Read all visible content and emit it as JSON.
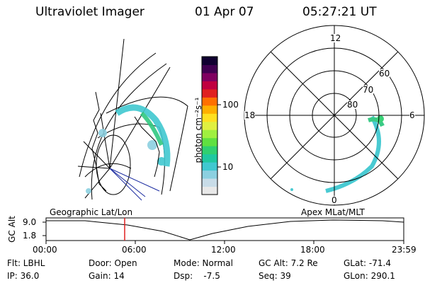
{
  "header": {
    "instrument": "Ultraviolet Imager",
    "date": "01 Apr 07",
    "time": "05:27:21 UT"
  },
  "colorbar": {
    "label": "photon cm⁻²s⁻¹",
    "ticks": [
      "100",
      "10"
    ],
    "colors": [
      "#e8e8e8",
      "#c8dce8",
      "#8cd0e0",
      "#40c8d0",
      "#20c8a0",
      "#30d070",
      "#60e040",
      "#a0f040",
      "#e0f040",
      "#ffe020",
      "#ffb000",
      "#ff7000",
      "#e02020",
      "#c00040",
      "#800060",
      "#400050",
      "#100030"
    ]
  },
  "geo_plot": {
    "label": "Geographic Lat/Lon"
  },
  "apex_plot": {
    "label": "Apex MLat/MLT",
    "mlt_labels": [
      "12",
      "18",
      "6",
      "0"
    ],
    "lat_labels": [
      "60",
      "70",
      "80"
    ]
  },
  "altitude_strip": {
    "axis_label": "GC Alt",
    "y_ticks": [
      "9.0",
      "1.8"
    ],
    "x_ticks": [
      "00:00",
      "06:00",
      "12:00",
      "18:00",
      "23:59"
    ]
  },
  "status": {
    "flt": "Flt: LBHL",
    "ip": "IP: 36.0",
    "door": "Door: Open",
    "gain": "Gain: 14",
    "mode": "Mode: Normal",
    "dsp": "Dsp:    -7.5",
    "gc_alt": "GC Alt: 7.2 Re",
    "seq": "Seq: 39",
    "glat": "GLat: -71.4",
    "glon": "GLon: 290.1"
  }
}
